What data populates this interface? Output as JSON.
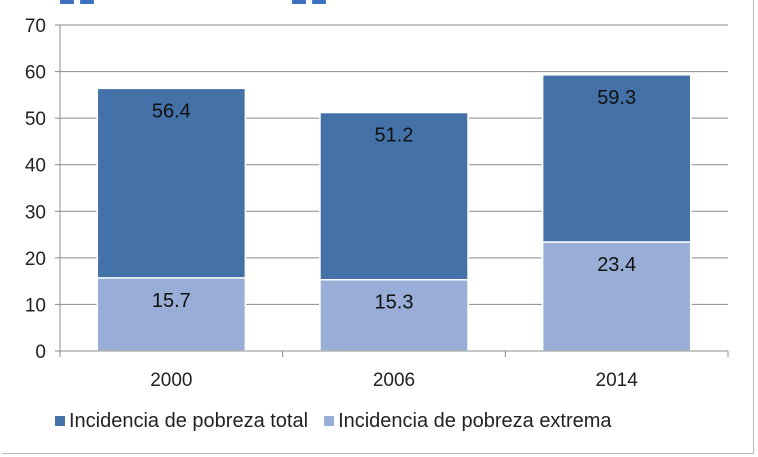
{
  "chart_data": {
    "type": "bar",
    "stacked": false,
    "overlapping": true,
    "categories": [
      "2000",
      "2006",
      "2014"
    ],
    "series": [
      {
        "name": "Incidencia de pobreza total",
        "values": [
          56.4,
          51.2,
          59.3
        ],
        "color": "#4472a8"
      },
      {
        "name": "Incidencia de pobreza extrema",
        "values": [
          15.7,
          15.3,
          23.4
        ],
        "color": "#98aed6"
      }
    ],
    "title": "",
    "xlabel": "",
    "ylabel": "",
    "ylim": [
      0,
      70
    ],
    "yticks": [
      0,
      10,
      20,
      30,
      40,
      50,
      60,
      70
    ],
    "grid": true,
    "legend_position": "bottom"
  }
}
